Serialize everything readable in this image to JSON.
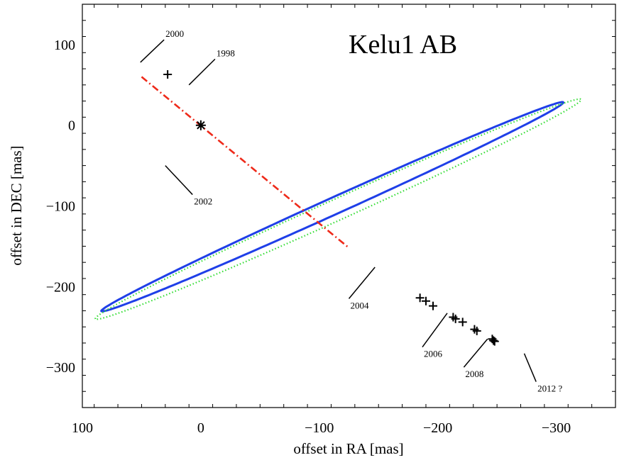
{
  "chart_data": {
    "type": "scatter",
    "title": "Kelu1 AB",
    "xlabel": "offset in RA  [mas]",
    "ylabel": "offset in DEC  [mas]",
    "xlim": [
      100,
      -350
    ],
    "ylim": [
      -350,
      150
    ],
    "x_ticks": [
      100,
      0,
      -100,
      -200,
      -300
    ],
    "x_tick_labels": [
      "100",
      "0",
      "−100",
      "−200",
      "−300"
    ],
    "y_ticks": [
      100,
      0,
      -100,
      -200,
      -300
    ],
    "y_tick_labels": [
      "100",
      "0",
      "−100",
      "−200",
      "−300"
    ],
    "grid": false,
    "primary_star": {
      "x": 0,
      "y": 0,
      "marker": "asterisk"
    },
    "series": [
      {
        "style": "solid",
        "color": "#1f3fe8",
        "ellipse": {
          "center": [
            -111,
            -101
          ],
          "semi_major": 234,
          "semi_minor": 9.5,
          "angle_deg": -33.6
        }
      },
      {
        "style": "dotted",
        "color": "#33dd33",
        "ellipse": {
          "center": [
            -116,
            -104
          ],
          "semi_major": 246,
          "semi_minor": 12,
          "angle_deg": -33.6
        }
      },
      {
        "style": "dash-dot",
        "color": "#ee2a1a",
        "points": [
          {
            "x": 50,
            "y": 60
          },
          {
            "x": -125,
            "y": -152
          }
        ]
      },
      {
        "style": "plus-markers",
        "color": "#000000",
        "points": [
          {
            "x": 28,
            "y": 63
          },
          {
            "x": -185,
            "y": -214
          },
          {
            "x": -190,
            "y": -218
          },
          {
            "x": -196,
            "y": -224
          },
          {
            "x": -213,
            "y": -238
          },
          {
            "x": -215,
            "y": -240
          },
          {
            "x": -221,
            "y": -244
          },
          {
            "x": -231,
            "y": -253
          },
          {
            "x": -233,
            "y": -255
          },
          {
            "x": -246,
            "y": -265
          },
          {
            "x": -247,
            "y": -267
          },
          {
            "x": -248,
            "y": -268
          }
        ]
      }
    ],
    "annotations": [
      {
        "text": "2000",
        "tip": [
          51,
          78
        ],
        "label": [
          31,
          106
        ]
      },
      {
        "text": "1998",
        "tip": [
          10,
          50
        ],
        "label": [
          -12,
          82
        ]
      },
      {
        "text": "2002",
        "tip": [
          30,
          -50
        ],
        "label": [
          7,
          -86
        ]
      },
      {
        "text": "2004",
        "tip": [
          -147,
          -176
        ],
        "label": [
          -125,
          -215
        ]
      },
      {
        "text": "2006",
        "tip": [
          -208,
          -233
        ],
        "label": [
          -187,
          -275
        ]
      },
      {
        "text": "2008",
        "tip": [
          -242,
          -265
        ],
        "label": [
          -222,
          -300
        ]
      },
      {
        "text": "2012 ?",
        "tip": [
          -273,
          -283
        ],
        "label": [
          -283,
          -318
        ]
      }
    ]
  }
}
